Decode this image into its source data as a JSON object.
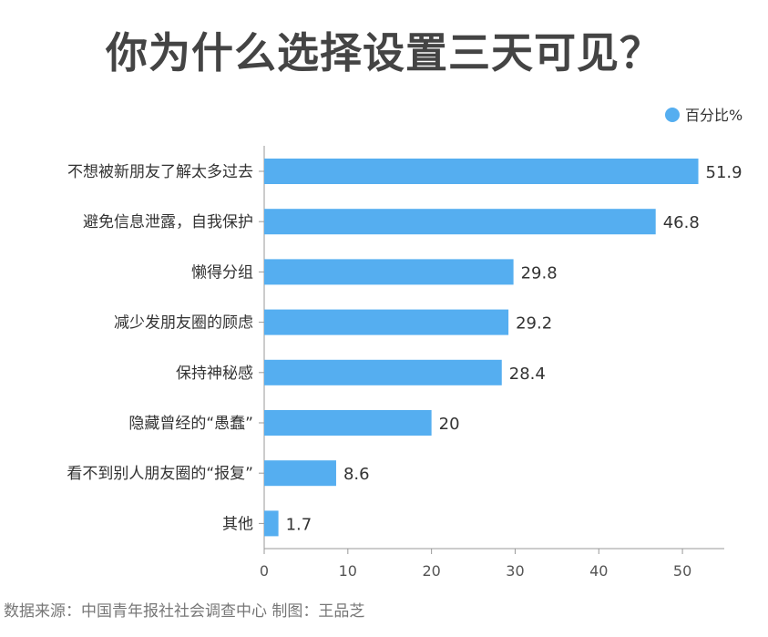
{
  "chart_data": {
    "type": "bar",
    "orientation": "horizontal",
    "title": "你为什么选择设置三天可见？",
    "categories": [
      "不想被新朋友了解太多过去",
      "避免信息泄露，自我保护",
      "懒得分组",
      "减少发朋友圈的顾虑",
      "保持神秘感",
      "隐藏曾经的“愚蠢”",
      "看不到别人朋友圈的“报复”",
      "其他"
    ],
    "series": [
      {
        "name": "百分比%",
        "values": [
          51.9,
          46.8,
          29.8,
          29.2,
          28.4,
          20,
          8.6,
          1.7
        ],
        "color": "#55aef0"
      }
    ],
    "xlim": [
      0,
      55
    ],
    "xticks": [
      0,
      10,
      20,
      30,
      40,
      50
    ],
    "legend_position": "top-right",
    "grid": false
  },
  "footer": {
    "source": "数据来源：中国青年报社社会调查中心 制图：王品芝"
  },
  "colors": {
    "bar": "#55aef0",
    "title": "#444444",
    "axis": "#999999"
  }
}
